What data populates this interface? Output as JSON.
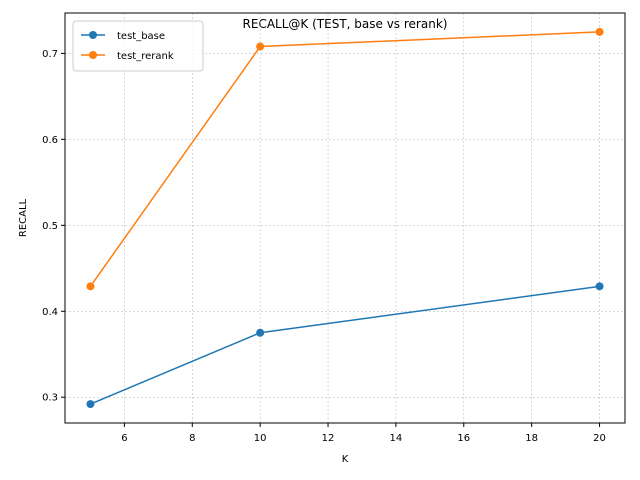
{
  "chart_data": {
    "type": "line",
    "title": "RECALL@K (TEST, base vs rerank)",
    "xlabel": "K",
    "ylabel": "RECALL",
    "x": [
      5,
      10,
      20
    ],
    "series": [
      {
        "name": "test_base",
        "values": [
          0.292,
          0.375,
          0.429
        ],
        "color": "#1f77b4"
      },
      {
        "name": "test_rerank",
        "values": [
          0.429,
          0.708,
          0.725
        ],
        "color": "#ff7f0e"
      }
    ],
    "xlim": [
      4.25,
      20.75
    ],
    "ylim": [
      0.27,
      0.747
    ],
    "xticks": [
      "6",
      "8",
      "10",
      "12",
      "14",
      "16",
      "18",
      "20"
    ],
    "yticks": [
      "0.3",
      "0.4",
      "0.5",
      "0.6",
      "0.7"
    ],
    "grid": true,
    "legend_position": "top-left",
    "marker": "circle"
  }
}
